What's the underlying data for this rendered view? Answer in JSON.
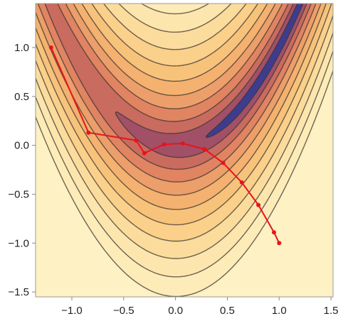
{
  "chart_data": {
    "type": "contour",
    "title": "",
    "xlabel": "",
    "ylabel": "",
    "xlim": [
      -1.35,
      1.52
    ],
    "ylim": [
      -1.55,
      1.45
    ],
    "grid": false,
    "x_ticks": [
      {
        "value": -1.0,
        "label": "−1.0"
      },
      {
        "value": -0.5,
        "label": "−0.5"
      },
      {
        "value": 0.0,
        "label": "0.0"
      },
      {
        "value": 0.5,
        "label": "0.5"
      },
      {
        "value": 1.0,
        "label": "1.0"
      },
      {
        "value": 1.5,
        "label": "1.5"
      }
    ],
    "y_ticks": [
      {
        "value": 1.0,
        "label": "1.0"
      },
      {
        "value": 0.5,
        "label": "0.5"
      },
      {
        "value": 0.0,
        "label": "0.0"
      },
      {
        "value": -0.5,
        "label": "−0.5"
      },
      {
        "value": -1.0,
        "label": "−1.0"
      },
      {
        "value": -1.5,
        "label": "−1.5"
      }
    ],
    "contour_field": {
      "function": "(1-x)^2 + 100*(y-x^2)^2",
      "levels": [
        0.5,
        2.5,
        7,
        15,
        27,
        44,
        67,
        97,
        135,
        182,
        240
      ]
    },
    "band_colors": [
      "#3c3d8f",
      "#a15068",
      "#c96b5f",
      "#e08462",
      "#ec9f6a",
      "#f4b16f",
      "#f7c37b",
      "#fad08a",
      "#fbdc9c",
      "#fde6ae",
      "#fdecb8",
      "#fef1c4"
    ],
    "contour_line_color": "#3d3630",
    "path_color": "#e8141b",
    "series": [
      {
        "x": [
          -1.2,
          -0.84,
          -0.38,
          -0.3,
          -0.11,
          0.07,
          0.28,
          0.46,
          0.64,
          0.8,
          0.95,
          1.0
        ],
        "y": [
          1.0,
          0.13,
          0.05,
          -0.08,
          0.01,
          0.02,
          -0.04,
          -0.18,
          -0.38,
          -0.61,
          -0.89,
          -1.0
        ]
      }
    ]
  }
}
